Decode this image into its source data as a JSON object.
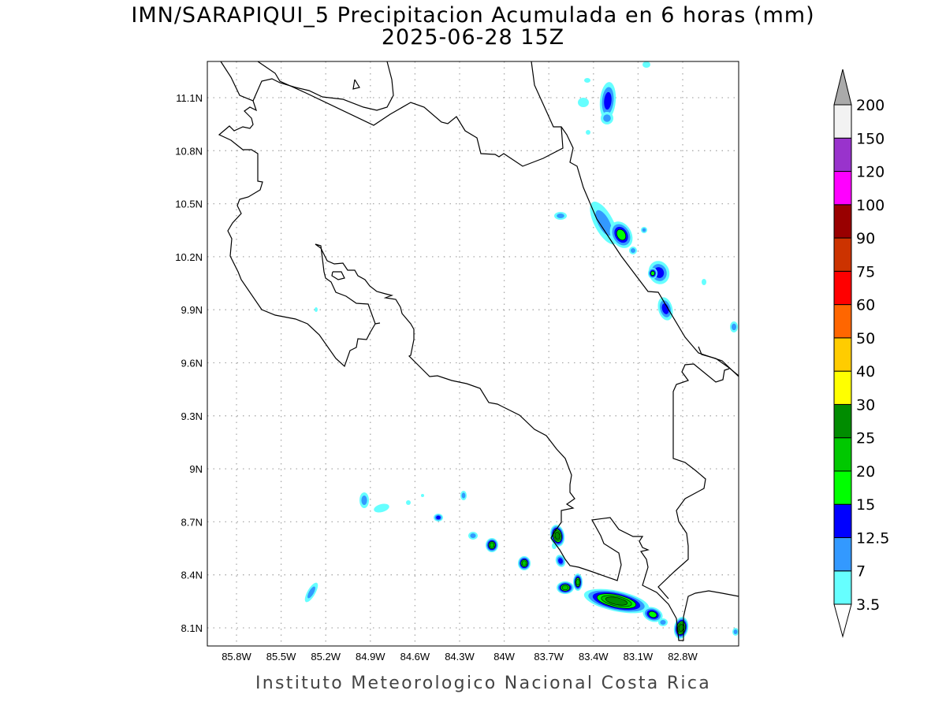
{
  "title": {
    "line1": "IMN/SARAPIQUI_5 Precipitacion Acumulada en 6 horas (mm)",
    "line2": "2025-06-28 15Z"
  },
  "footer": "Instituto Meteorologico Nacional Costa Rica",
  "map": {
    "lon_labels": [
      "85.8W",
      "85.5W",
      "85.2W",
      "84.9W",
      "84.6W",
      "84.3W",
      "84W",
      "83.7W",
      "83.4W",
      "83.1W",
      "82.8W"
    ],
    "lat_labels": [
      "11.1N",
      "10.8N",
      "10.5N",
      "10.2N",
      "9.9N",
      "9.6N",
      "9.3N",
      "9N",
      "8.7N",
      "8.4N",
      "8.1N"
    ]
  },
  "colorbar": {
    "labels": [
      "3.5",
      "7",
      "12.5",
      "15",
      "20",
      "25",
      "30",
      "40",
      "50",
      "60",
      "75",
      "90",
      "100",
      "120",
      "150",
      "200"
    ],
    "colors": [
      "#66ffff",
      "#3399ff",
      "#0000ff",
      "#00ff00",
      "#00c800",
      "#008c00",
      "#ffff00",
      "#ffcc00",
      "#ff6600",
      "#ff0000",
      "#cc3300",
      "#990000",
      "#ff00ff",
      "#9933cc",
      "#f2f2f2"
    ],
    "over_color": "#aaaaaa",
    "under_color": "#ffffff"
  }
}
